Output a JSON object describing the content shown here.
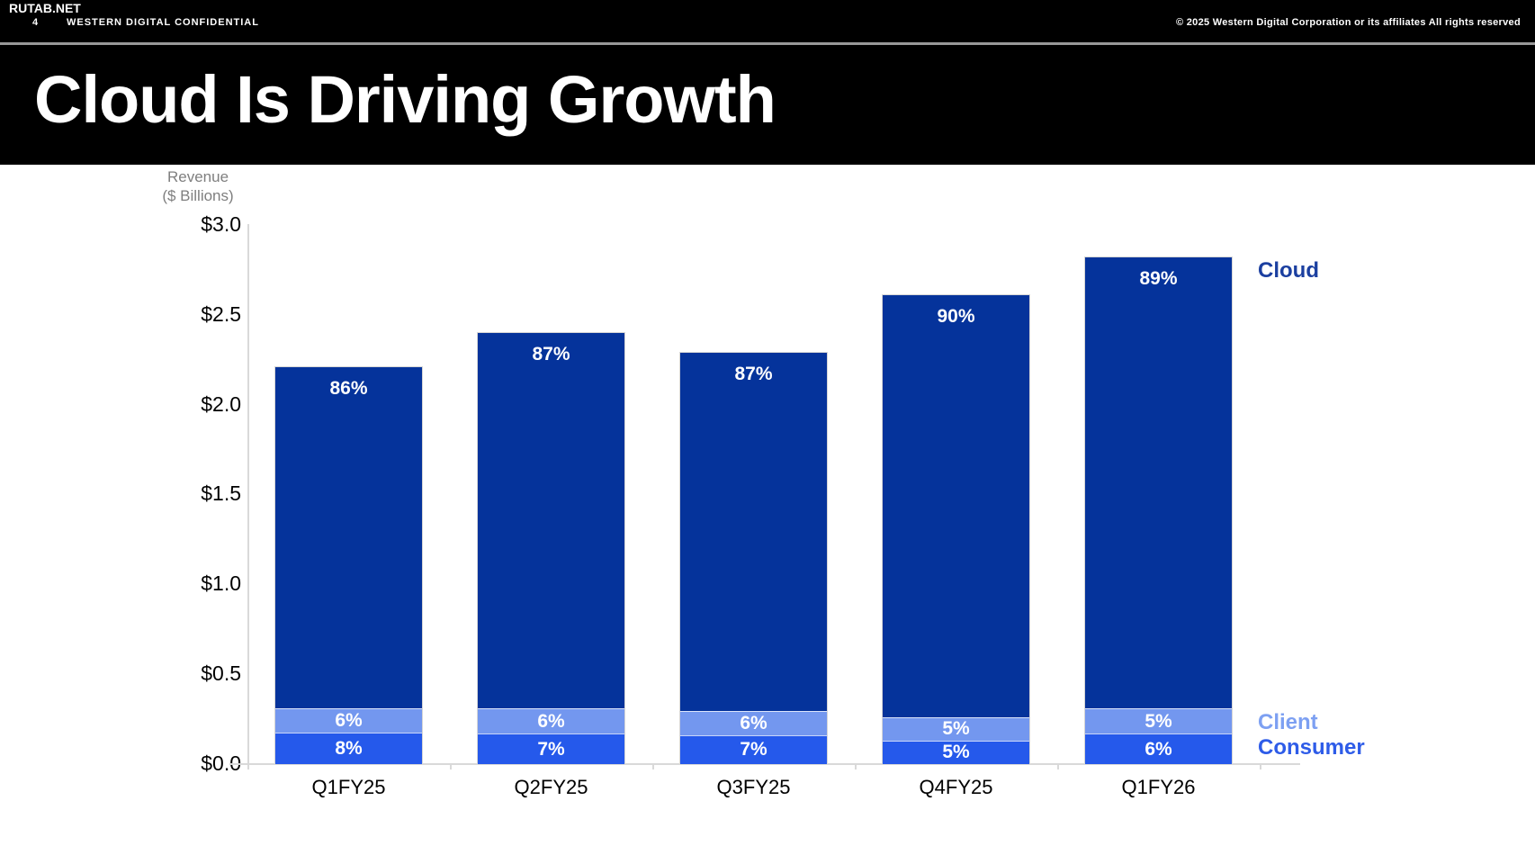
{
  "header": {
    "watermark": "RUTAB.NET",
    "page_number": "4",
    "confidential": "WESTERN DIGITAL CONFIDENTIAL",
    "copyright": "© 2025 Western Digital Corporation or its affiliates  All rights reserved"
  },
  "slide": {
    "title": "Cloud Is Driving Growth"
  },
  "chart_data": {
    "type": "bar",
    "stacked": true,
    "y_axis_title_line1": "Revenue",
    "y_axis_title_line2": "($ Billions)",
    "categories": [
      "Q1FY25",
      "Q2FY25",
      "Q3FY25",
      "Q4FY25",
      "Q1FY26"
    ],
    "totals_billions": [
      2.21,
      2.4,
      2.29,
      2.61,
      2.82
    ],
    "series": [
      {
        "name": "Cloud",
        "unit": "% of total revenue",
        "values": [
          86,
          87,
          87,
          90,
          89
        ],
        "color": "#05339B",
        "legend_color": "#1B3FA0"
      },
      {
        "name": "Client",
        "unit": "% of total revenue",
        "values": [
          6,
          6,
          6,
          5,
          5
        ],
        "color": "#7397EF",
        "legend_color": "#7DA0F2"
      },
      {
        "name": "Consumer",
        "unit": "% of total revenue",
        "values": [
          8,
          7,
          7,
          5,
          6
        ],
        "color": "#2559EB",
        "legend_color": "#2E5CE8"
      }
    ],
    "y_ticks": [
      "$3.0",
      "$2.5",
      "$2.0",
      "$1.5",
      "$1.0",
      "$0.5",
      "$0.0"
    ],
    "ylim": [
      0,
      3.0
    ],
    "y_tick_step": 0.5,
    "grid": false,
    "legend_position": "right",
    "bar_label_format": "percent"
  }
}
